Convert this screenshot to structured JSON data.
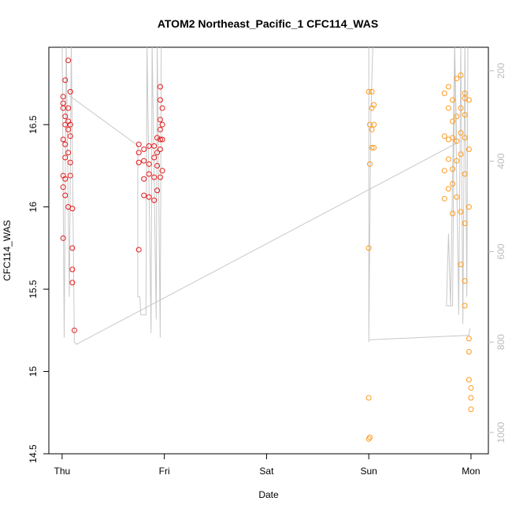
{
  "chart_data": {
    "type": "scatter",
    "title": "ATOM2 Northeast_Pacific_1 CFC114_WAS",
    "x_label": "Date",
    "y_label": "CFC114_WAS",
    "xlim": [
      -0.13,
      4.17
    ],
    "xticks": [
      {
        "value": 0,
        "label": "Thu"
      },
      {
        "value": 1,
        "label": "Fri"
      },
      {
        "value": 2,
        "label": "Sat"
      },
      {
        "value": 3,
        "label": "Sun"
      },
      {
        "value": 4,
        "label": "Mon"
      }
    ],
    "ylim": [
      14.5,
      16.97
    ],
    "yticks": [
      14.5,
      15.0,
      15.5,
      16.0,
      16.5
    ],
    "y2lim": [
      1047,
      148
    ],
    "y2ticks": [
      200,
      400,
      600,
      800,
      1000
    ],
    "series": [
      {
        "type": "scatter",
        "color": "#e41a1c",
        "x": [
          0.01,
          0.01,
          0.01,
          0.01,
          0.01,
          0.01,
          0.01,
          0.03,
          0.03,
          0.03,
          0.03,
          0.03,
          0.03,
          0.03,
          0.06,
          0.06,
          0.06,
          0.06,
          0.06,
          0.06,
          0.08,
          0.08,
          0.08,
          0.08,
          0.08,
          0.1,
          0.1,
          0.1,
          0.1,
          0.12,
          0.75,
          0.75,
          0.75,
          0.75,
          0.8,
          0.8,
          0.8,
          0.8,
          0.85,
          0.85,
          0.85,
          0.85,
          0.9,
          0.9,
          0.9,
          0.9,
          0.93,
          0.93,
          0.93,
          0.93,
          0.96,
          0.96,
          0.96,
          0.96,
          0.96,
          0.96,
          0.96,
          0.98,
          0.98,
          0.98,
          0.98
        ],
        "values": [
          16.67,
          16.63,
          16.6,
          16.41,
          16.19,
          16.12,
          15.81,
          16.77,
          16.55,
          16.5,
          16.38,
          16.3,
          16.17,
          16.07,
          16.89,
          16.6,
          16.52,
          16.47,
          16.33,
          16.0,
          16.7,
          16.5,
          16.43,
          16.27,
          16.19,
          15.99,
          15.75,
          15.62,
          15.54,
          15.25,
          16.38,
          16.33,
          16.27,
          15.74,
          16.28,
          16.17,
          16.07,
          16.35,
          16.37,
          16.26,
          16.2,
          16.06,
          16.3,
          16.18,
          16.04,
          16.37,
          16.42,
          16.33,
          16.25,
          16.1,
          16.73,
          16.65,
          16.53,
          16.47,
          16.41,
          16.35,
          16.18,
          16.6,
          16.5,
          16.41,
          16.22
        ]
      },
      {
        "type": "scatter",
        "color": "#ff9a1f",
        "x": [
          3.0,
          3.0,
          3.0,
          3.0,
          3.01,
          3.01,
          3.01,
          3.03,
          3.03,
          3.03,
          3.03,
          3.05,
          3.05,
          3.05,
          3.74,
          3.74,
          3.74,
          3.74,
          3.78,
          3.78,
          3.78,
          3.78,
          3.78,
          3.82,
          3.82,
          3.82,
          3.82,
          3.82,
          3.82,
          3.86,
          3.86,
          3.86,
          3.86,
          3.86,
          3.9,
          3.9,
          3.9,
          3.9,
          3.9,
          3.9,
          3.94,
          3.94,
          3.94,
          3.94,
          3.94,
          3.94,
          3.94,
          3.94,
          3.98,
          3.98,
          3.98,
          3.98,
          3.98,
          3.98,
          4.0,
          4.0,
          4.0
        ],
        "values": [
          16.7,
          15.75,
          14.84,
          14.59,
          14.6,
          16.26,
          16.5,
          16.7,
          16.6,
          16.47,
          16.36,
          16.62,
          16.5,
          16.36,
          16.69,
          16.43,
          16.22,
          16.05,
          16.73,
          16.6,
          16.41,
          16.29,
          16.11,
          16.65,
          16.52,
          16.42,
          16.23,
          15.96,
          16.14,
          16.78,
          16.55,
          16.4,
          16.28,
          16.06,
          16.8,
          16.6,
          16.45,
          16.32,
          15.97,
          15.65,
          16.69,
          16.66,
          16.56,
          16.42,
          16.2,
          15.55,
          15.9,
          15.4,
          16.65,
          16.35,
          16.0,
          15.2,
          15.12,
          14.95,
          14.9,
          14.84,
          14.77
        ]
      },
      {
        "type": "line",
        "color": "#c8c8c8",
        "axis": "y2",
        "x": [
          0.0,
          0.02,
          0.04,
          0.07,
          0.09,
          0.12,
          0.14,
          3.86,
          3.84,
          3.8,
          3.78,
          3.76,
          3.82,
          3.84,
          3.88,
          3.9,
          3.92,
          3.94,
          3.96,
          3.97,
          null,
          0.07,
          0.74,
          0.74,
          0.76,
          0.77,
          0.82,
          0.83,
          0.87,
          0.88,
          0.92,
          0.93,
          0.96,
          0.97,
          null,
          3.0,
          3.0,
          3.02,
          3.04,
          null,
          3.0,
          3.98,
          3.99
        ],
        "values": [
          140,
          790,
          140,
          700,
          140,
          800,
          805,
          360,
          140,
          720,
          560,
          720,
          720,
          140,
          740,
          140,
          760,
          140,
          700,
          140,
          null,
          255,
          365,
          700,
          700,
          740,
          740,
          140,
          780,
          140,
          750,
          140,
          790,
          140,
          null,
          140,
          800,
          300,
          140,
          null,
          795,
          785,
          770
        ]
      }
    ]
  }
}
